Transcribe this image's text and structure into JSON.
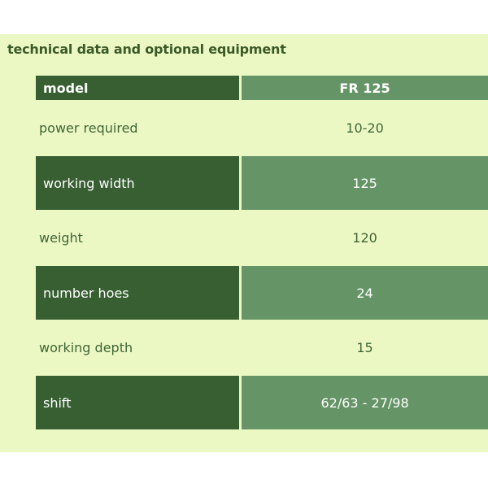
{
  "section": {
    "title": "technical data and optional equipment"
  },
  "table": {
    "header": {
      "label": "model",
      "value": "FR 125"
    },
    "rows": [
      {
        "label": "power required",
        "value": "10-20"
      },
      {
        "label": "working width",
        "value": "125"
      },
      {
        "label": "weight",
        "value": "120"
      },
      {
        "label": "number hoes",
        "value": "24"
      },
      {
        "label": "working depth",
        "value": "15"
      },
      {
        "label": "shift",
        "value": "62/63 - 27/98"
      }
    ]
  },
  "colors": {
    "panel_background": "#ecf8c4",
    "dark_green": "#375f32",
    "medium_green": "#659566",
    "text_green": "#3f6636"
  }
}
